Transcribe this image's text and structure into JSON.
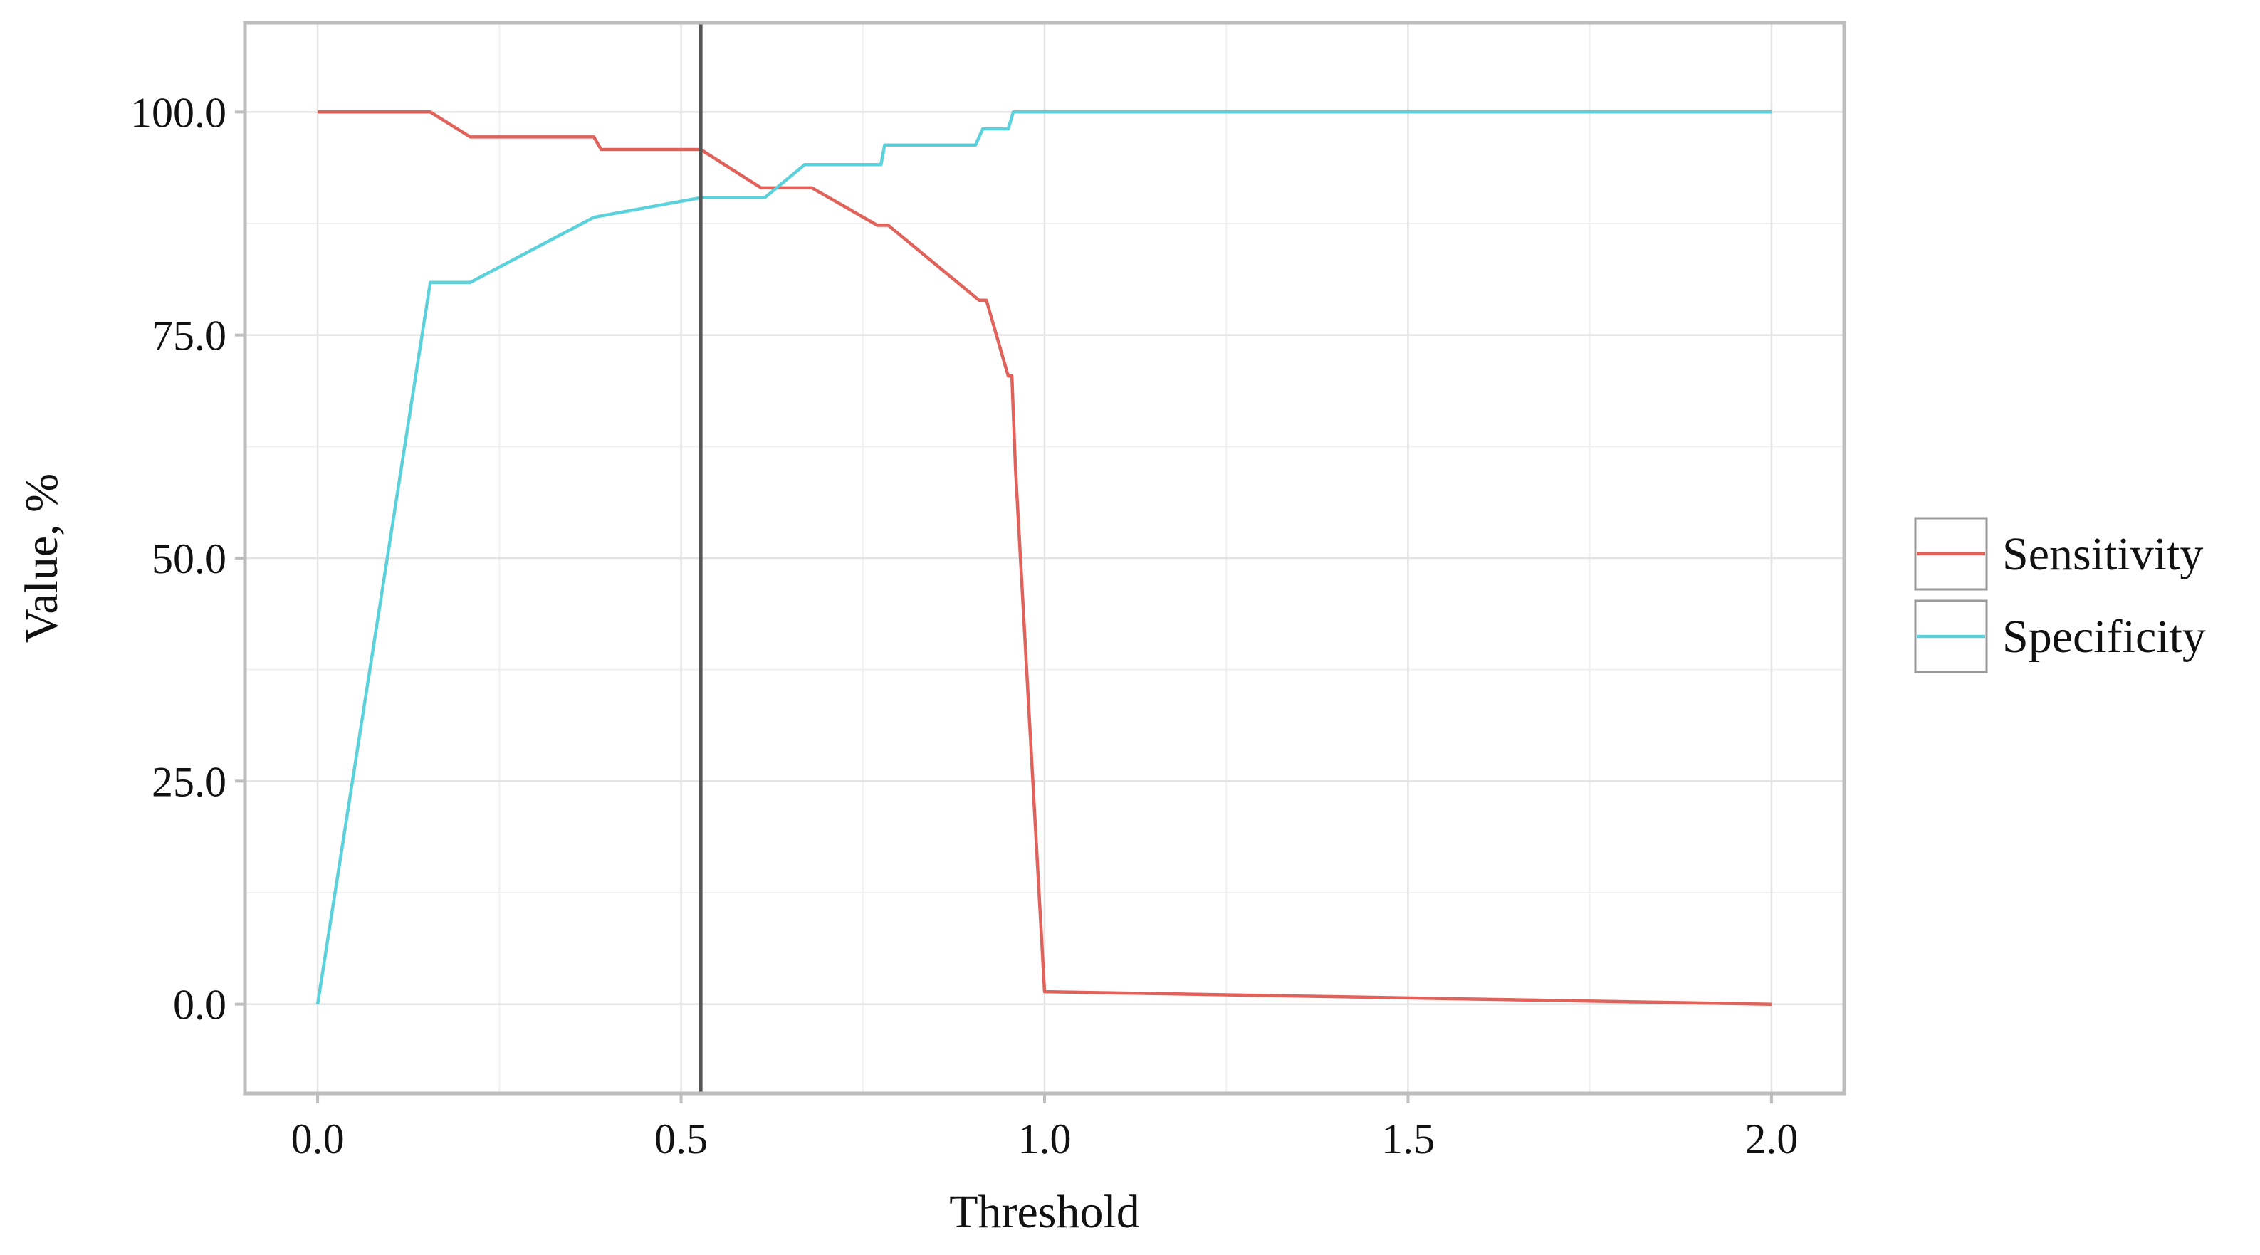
{
  "chart_data": {
    "type": "line",
    "title": "",
    "xlabel": "Threshold",
    "ylabel": "Value, %",
    "xlim": [
      -0.1,
      2.1
    ],
    "ylim": [
      -10,
      110
    ],
    "x_ticks": [
      {
        "value": 0.0,
        "label": "0.0"
      },
      {
        "value": 0.5,
        "label": "0.5"
      },
      {
        "value": 1.0,
        "label": "1.0"
      },
      {
        "value": 1.5,
        "label": "1.5"
      },
      {
        "value": 2.0,
        "label": "2.0"
      }
    ],
    "y_ticks": [
      {
        "value": 0,
        "label": "0.0"
      },
      {
        "value": 25,
        "label": "25.0"
      },
      {
        "value": 50,
        "label": "50.0"
      },
      {
        "value": 75,
        "label": "75.0"
      },
      {
        "value": 100,
        "label": "100.0"
      }
    ],
    "grid": true,
    "legend_position": "right",
    "vline": {
      "x": 0.527,
      "color": "#555555"
    },
    "series": [
      {
        "name": "Sensitivity",
        "color": "#e0625a",
        "points": [
          [
            0.0,
            100
          ],
          [
            0.155,
            100
          ],
          [
            0.21,
            97.2
          ],
          [
            0.38,
            97.2
          ],
          [
            0.39,
            95.8
          ],
          [
            0.527,
            95.8
          ],
          [
            0.61,
            91.5
          ],
          [
            0.68,
            91.5
          ],
          [
            0.77,
            87.3
          ],
          [
            0.785,
            87.3
          ],
          [
            0.91,
            78.9
          ],
          [
            0.92,
            78.9
          ],
          [
            0.95,
            70.4
          ],
          [
            0.955,
            70.4
          ],
          [
            0.96,
            60
          ],
          [
            1.0,
            1.4
          ],
          [
            2.0,
            0.0
          ]
        ]
      },
      {
        "name": "Specificity",
        "color": "#5bd1db",
        "points": [
          [
            0.0,
            0.0
          ],
          [
            0.155,
            80.9
          ],
          [
            0.21,
            80.9
          ],
          [
            0.38,
            88.2
          ],
          [
            0.527,
            90.4
          ],
          [
            0.615,
            90.4
          ],
          [
            0.67,
            94.1
          ],
          [
            0.775,
            94.1
          ],
          [
            0.78,
            96.3
          ],
          [
            0.905,
            96.3
          ],
          [
            0.915,
            98.1
          ],
          [
            0.95,
            98.1
          ],
          [
            0.957,
            100
          ],
          [
            2.0,
            100
          ]
        ]
      }
    ]
  }
}
